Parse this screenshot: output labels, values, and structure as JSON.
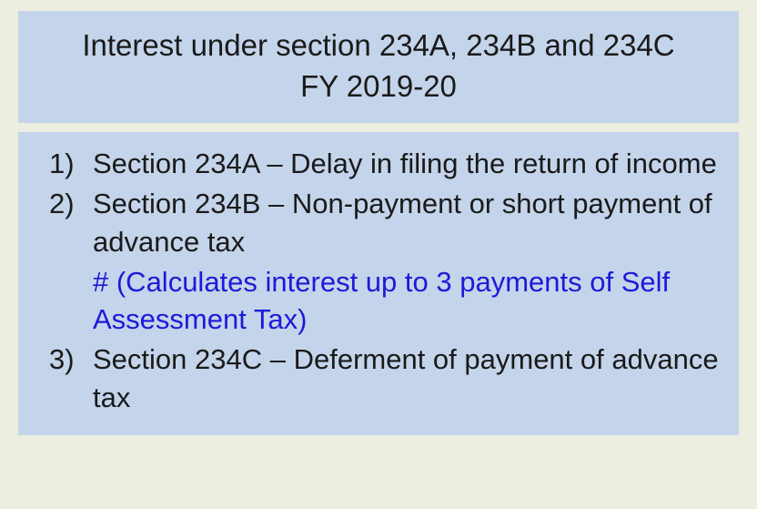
{
  "title": {
    "line1": "Interest under section 234A, 234B and 234C",
    "line2": "FY 2019-20"
  },
  "items": [
    {
      "num": "1)",
      "text": "Section 234A – Delay in filing the return of income"
    },
    {
      "num": "2)",
      "text": "Section 234B – Non-payment or short payment of advance tax",
      "note": "# (Calculates interest up to 3 payments of Self Assessment Tax)"
    },
    {
      "num": "3)",
      "text": "Section 234C – Deferment of payment of advance tax"
    }
  ],
  "colors": {
    "page_bg": "#ecefdf",
    "box_bg": "#c4d4ea",
    "text": "#1a1a1a",
    "note": "#1b1bd8"
  },
  "typography": {
    "title_fontsize": 33,
    "body_fontsize": 31,
    "font_family": "Arial"
  }
}
